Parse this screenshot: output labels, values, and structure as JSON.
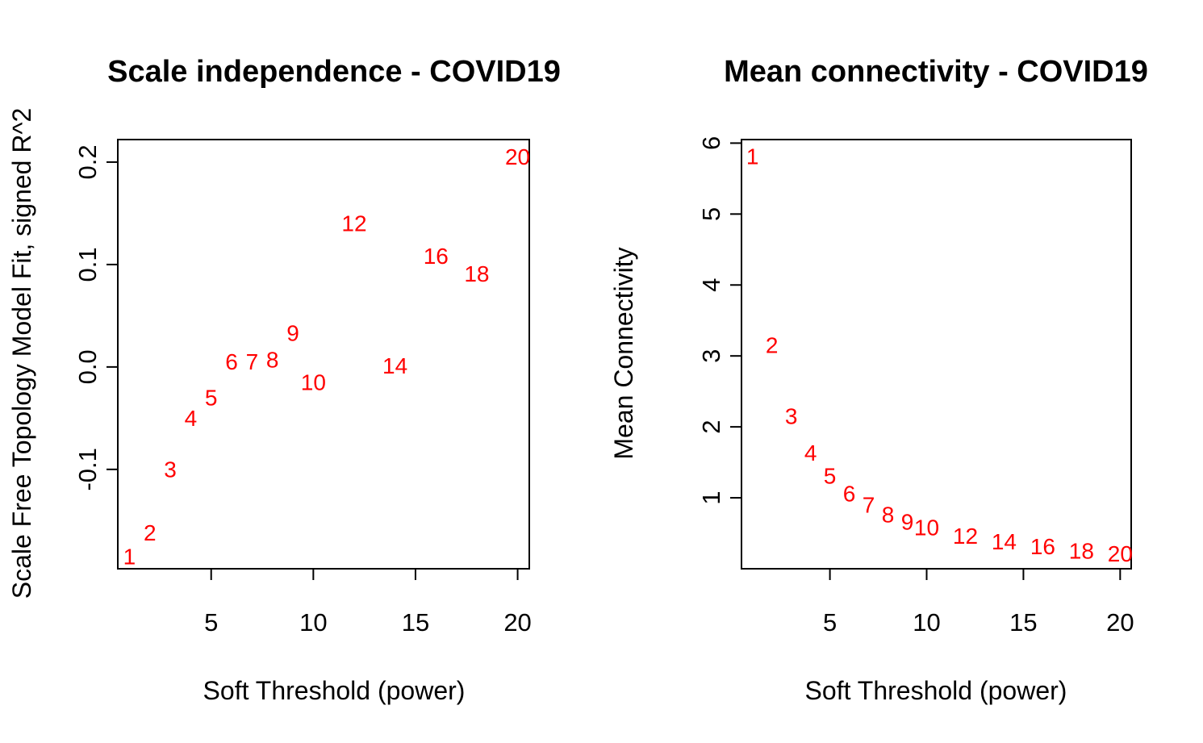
{
  "chart_data": [
    {
      "type": "scatter",
      "title": "Scale independence - COVID19",
      "xlabel": "Soft Threshold (power)",
      "ylabel": "Scale Free Topology Model Fit, signed R^2",
      "xlim": [
        0.43,
        20.57
      ],
      "ylim": [
        -0.197,
        0.222
      ],
      "xticks": [
        5,
        10,
        15,
        20
      ],
      "yticks": [
        -0.1,
        0.0,
        0.1,
        0.2
      ],
      "xtick_labels": [
        "5",
        "10",
        "15",
        "20"
      ],
      "ytick_labels": [
        "-0.1",
        "0.0",
        "0.1",
        "0.2"
      ],
      "point_color": "#ff0000",
      "points": [
        {
          "x": 1,
          "y": -0.185,
          "label": "1"
        },
        {
          "x": 2,
          "y": -0.162,
          "label": "2"
        },
        {
          "x": 3,
          "y": -0.1,
          "label": "3"
        },
        {
          "x": 4,
          "y": -0.05,
          "label": "4"
        },
        {
          "x": 5,
          "y": -0.03,
          "label": "5"
        },
        {
          "x": 6,
          "y": 0.005,
          "label": "6"
        },
        {
          "x": 7,
          "y": 0.005,
          "label": "7"
        },
        {
          "x": 8,
          "y": 0.007,
          "label": "8"
        },
        {
          "x": 9,
          "y": 0.033,
          "label": "9"
        },
        {
          "x": 10,
          "y": -0.015,
          "label": "10"
        },
        {
          "x": 12,
          "y": 0.14,
          "label": "12"
        },
        {
          "x": 14,
          "y": 0.001,
          "label": "14"
        },
        {
          "x": 16,
          "y": 0.108,
          "label": "16"
        },
        {
          "x": 18,
          "y": 0.091,
          "label": "18"
        },
        {
          "x": 20,
          "y": 0.205,
          "label": "20"
        }
      ]
    },
    {
      "type": "scatter",
      "title": "Mean connectivity - COVID19",
      "xlabel": "Soft Threshold (power)",
      "ylabel": "Mean Connectivity",
      "xlim": [
        0.43,
        20.57
      ],
      "ylim": [
        0.0,
        6.05
      ],
      "xticks": [
        5,
        10,
        15,
        20
      ],
      "yticks": [
        1,
        2,
        3,
        4,
        5,
        6
      ],
      "xtick_labels": [
        "5",
        "10",
        "15",
        "20"
      ],
      "ytick_labels": [
        "1",
        "2",
        "3",
        "4",
        "5",
        "6"
      ],
      "point_color": "#ff0000",
      "points": [
        {
          "x": 1,
          "y": 5.81,
          "label": "1"
        },
        {
          "x": 2,
          "y": 3.15,
          "label": "2"
        },
        {
          "x": 3,
          "y": 2.15,
          "label": "3"
        },
        {
          "x": 4,
          "y": 1.63,
          "label": "4"
        },
        {
          "x": 5,
          "y": 1.31,
          "label": "5"
        },
        {
          "x": 6,
          "y": 1.06,
          "label": "6"
        },
        {
          "x": 7,
          "y": 0.9,
          "label": "7"
        },
        {
          "x": 8,
          "y": 0.76,
          "label": "8"
        },
        {
          "x": 9,
          "y": 0.66,
          "label": "9"
        },
        {
          "x": 10,
          "y": 0.58,
          "label": "10"
        },
        {
          "x": 12,
          "y": 0.46,
          "label": "12"
        },
        {
          "x": 14,
          "y": 0.38,
          "label": "14"
        },
        {
          "x": 16,
          "y": 0.31,
          "label": "16"
        },
        {
          "x": 18,
          "y": 0.25,
          "label": "18"
        },
        {
          "x": 20,
          "y": 0.21,
          "label": "20"
        }
      ]
    }
  ]
}
